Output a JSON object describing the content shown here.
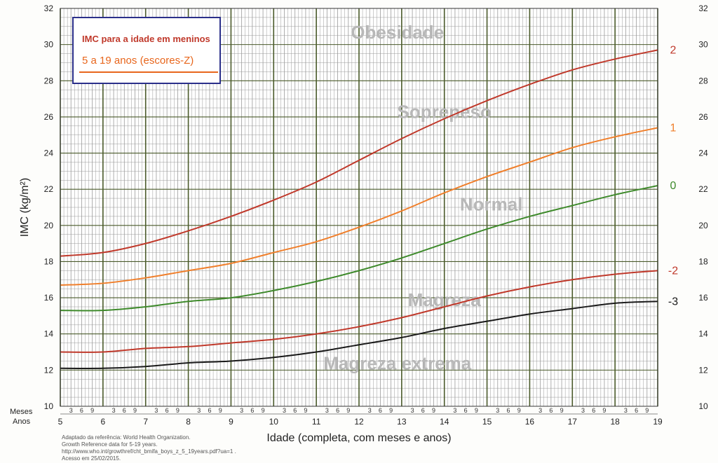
{
  "title_box": {
    "line1": "IMC para a idade em meninos",
    "line2": "5 a 19 anos (escores-Z)"
  },
  "footnote": [
    "Adaptado da referência:  World Health Organization.",
    "Growth Reference data for 5-19 years.",
    "http://www.who.int/growthref/cht_bmifa_boys_z_5_19years.pdf?ua=1 .",
    "Acesso em 25/02/2015."
  ],
  "axis_row_labels": {
    "months": "Meses",
    "years": "Anos"
  },
  "month_tick_labels": [
    "3",
    "6",
    "9"
  ],
  "colors": {
    "z2": "#c0392b",
    "z1": "#f07f2b",
    "z0": "#3e8a2b",
    "zm2": "#c0392b",
    "zm3": "#1a1a1a",
    "major_grid": "#4a5a2a",
    "minor_grid": "#9a9a9a",
    "region_label": "#b8b8b8"
  },
  "chart_data": {
    "type": "line",
    "title": "IMC para a idade em meninos",
    "subtitle": "5 a 19 anos (escores-Z)",
    "xlabel": "Idade (completa, com meses e anos)",
    "ylabel": "IMC (kg/m²)",
    "xlim": [
      5,
      19
    ],
    "ylim": [
      10,
      32
    ],
    "x_ticks": [
      "5",
      "6",
      "7",
      "8",
      "9",
      "10",
      "11",
      "12",
      "13",
      "14",
      "15",
      "16",
      "17",
      "18",
      "19"
    ],
    "y_ticks": [
      "10",
      "12",
      "14",
      "16",
      "18",
      "20",
      "22",
      "24",
      "26",
      "28",
      "30",
      "32"
    ],
    "grid": true,
    "x": [
      5,
      6,
      7,
      8,
      9,
      10,
      11,
      12,
      13,
      14,
      15,
      16,
      17,
      18,
      19
    ],
    "series": [
      {
        "name": "2",
        "color_key": "z2",
        "values": [
          18.3,
          18.5,
          19.0,
          19.7,
          20.5,
          21.4,
          22.4,
          23.6,
          24.8,
          25.9,
          26.9,
          27.8,
          28.6,
          29.2,
          29.7
        ]
      },
      {
        "name": "1",
        "color_key": "z1",
        "values": [
          16.7,
          16.8,
          17.1,
          17.5,
          17.9,
          18.5,
          19.1,
          19.9,
          20.8,
          21.8,
          22.7,
          23.5,
          24.3,
          24.9,
          25.4
        ]
      },
      {
        "name": "0",
        "color_key": "z0",
        "values": [
          15.3,
          15.3,
          15.5,
          15.8,
          16.0,
          16.4,
          16.9,
          17.5,
          18.2,
          19.0,
          19.8,
          20.5,
          21.1,
          21.7,
          22.2
        ]
      },
      {
        "name": "-2",
        "color_key": "zm2",
        "values": [
          13.0,
          13.0,
          13.2,
          13.3,
          13.5,
          13.7,
          14.0,
          14.4,
          14.9,
          15.5,
          16.1,
          16.6,
          17.0,
          17.3,
          17.5
        ]
      },
      {
        "name": "-3",
        "color_key": "zm3",
        "values": [
          12.1,
          12.1,
          12.2,
          12.4,
          12.5,
          12.7,
          13.0,
          13.4,
          13.8,
          14.3,
          14.7,
          15.1,
          15.4,
          15.7,
          15.8
        ]
      }
    ],
    "annotations": [
      {
        "text": "Obesidade",
        "x": 12.9,
        "y": 30.6
      },
      {
        "text": "Soprepeso",
        "x": 14.0,
        "y": 26.2
      },
      {
        "text": "Normal",
        "x": 15.1,
        "y": 21.1
      },
      {
        "text": "Magreza",
        "x": 14.0,
        "y": 15.8
      },
      {
        "text": "Magreza extrema",
        "x": 12.9,
        "y": 12.3
      }
    ]
  }
}
